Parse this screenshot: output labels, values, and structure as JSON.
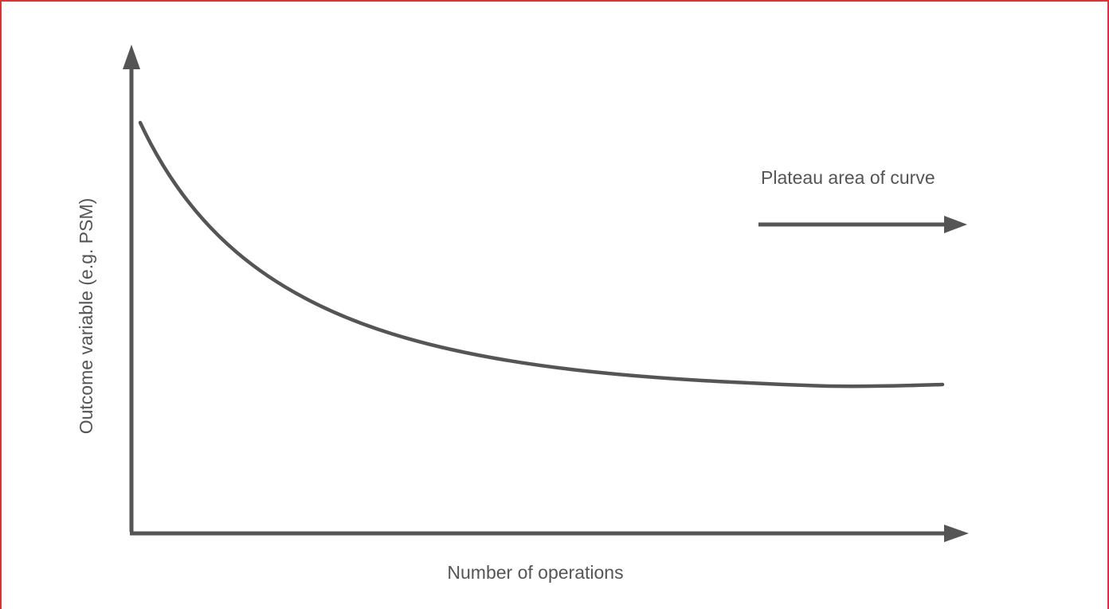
{
  "figure": {
    "y_axis_label": "Outcome variable (e.g. PSM)",
    "x_axis_label": "Number of operations",
    "plateau_label": "Plateau area of curve",
    "colors": {
      "ink": "#555555",
      "frame": "#d9343d",
      "background": "#ffffff"
    }
  }
}
